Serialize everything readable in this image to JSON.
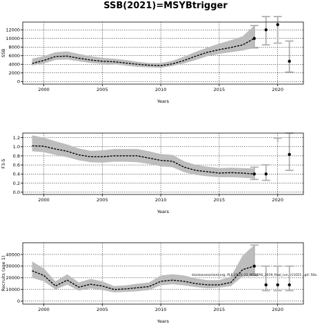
{
  "figure": {
    "title": "SSB(2021)=MSYBtrigger"
  },
  "chart_data": [
    {
      "type": "line",
      "xlabel": "Years",
      "ylabel": "SSB",
      "xlim": [
        1998.2,
        2022.2
      ],
      "ylim": [
        -600,
        13800
      ],
      "xticks": [
        2000,
        2005,
        2010,
        2015,
        2020
      ],
      "yticks": [
        0,
        2000,
        4000,
        6000,
        8000,
        10000,
        12000
      ],
      "grid": true,
      "x": [
        1999,
        2000,
        2001,
        2002,
        2003,
        2004,
        2005,
        2006,
        2007,
        2008,
        2009,
        2010,
        2011,
        2012,
        2013,
        2014,
        2015,
        2016,
        2017,
        2018
      ],
      "estimate": [
        4200,
        4900,
        5800,
        5900,
        5400,
        5000,
        4700,
        4600,
        4300,
        4000,
        3800,
        3700,
        4100,
        4900,
        5900,
        6800,
        7400,
        7900,
        8500,
        10000
      ],
      "lower": [
        3700,
        4200,
        5000,
        5100,
        4700,
        4300,
        4100,
        4000,
        3700,
        3400,
        3300,
        3200,
        3600,
        4200,
        5000,
        5900,
        6400,
        6800,
        7200,
        7800
      ],
      "upper": [
        5300,
        5900,
        6800,
        7000,
        6400,
        5900,
        5500,
        5300,
        5000,
        4600,
        4300,
        4300,
        4800,
        5800,
        6900,
        7900,
        8800,
        9600,
        10500,
        13000
      ],
      "projections": [
        {
          "year": 2019,
          "value": 12000,
          "lower": 8500,
          "upper": 15500
        },
        {
          "year": 2020,
          "value": 13200,
          "lower": 8900,
          "upper": 17500
        },
        {
          "year": 2021,
          "value": 4700,
          "lower": 2200,
          "upper": 9400
        }
      ],
      "error_bar_2018": {
        "lower": 7800,
        "upper": 13000
      }
    },
    {
      "type": "line",
      "xlabel": "Years",
      "ylabel": "F3-5",
      "xlim": [
        1998.2,
        2022.2
      ],
      "ylim": [
        -0.05,
        1.3
      ],
      "xticks": [
        2000,
        2005,
        2010,
        2015,
        2020
      ],
      "yticks": [
        0.0,
        0.2,
        0.4,
        0.6,
        0.8,
        1.0,
        1.2
      ],
      "grid": true,
      "x": [
        1999,
        2000,
        2001,
        2002,
        2003,
        2004,
        2005,
        2006,
        2007,
        2008,
        2009,
        2010,
        2011,
        2012,
        2013,
        2014,
        2015,
        2016,
        2017,
        2018
      ],
      "estimate": [
        1.02,
        1.01,
        0.95,
        0.9,
        0.82,
        0.78,
        0.78,
        0.8,
        0.8,
        0.8,
        0.75,
        0.7,
        0.68,
        0.55,
        0.48,
        0.45,
        0.42,
        0.43,
        0.42,
        0.4
      ],
      "lower": [
        0.9,
        0.88,
        0.82,
        0.77,
        0.7,
        0.66,
        0.65,
        0.67,
        0.67,
        0.66,
        0.62,
        0.57,
        0.55,
        0.44,
        0.38,
        0.35,
        0.33,
        0.33,
        0.32,
        0.3
      ],
      "upper": [
        1.25,
        1.2,
        1.12,
        1.05,
        0.96,
        0.91,
        0.92,
        0.95,
        0.95,
        0.95,
        0.9,
        0.84,
        0.82,
        0.68,
        0.6,
        0.56,
        0.53,
        0.54,
        0.53,
        0.52
      ],
      "projections": [
        {
          "year": 2019,
          "value": 0.4,
          "lower": 0.26,
          "upper": 0.6
        },
        {
          "year": 2020,
          "value": null,
          "lower": null,
          "upper": 1.19
        },
        {
          "year": 2021,
          "value": 0.83,
          "lower": 0.48,
          "upper": 1.3
        }
      ],
      "error_bar_2018": {
        "lower": 0.28,
        "upper": 0.55
      }
    },
    {
      "type": "line",
      "xlabel": "Years",
      "ylabel": "Recruits (age 1)",
      "xlim": [
        1998.2,
        2022.2
      ],
      "ylim": [
        -2500,
        50000
      ],
      "xticks": [
        2000,
        2005,
        2010,
        2015,
        2020
      ],
      "yticks": [
        0,
        10000,
        20000,
        30000,
        40000
      ],
      "ytick_labels": [
        "0",
        "10000",
        "20000",
        "30000",
        "40000"
      ],
      "grid": true,
      "x": [
        1999,
        2000,
        2001,
        2002,
        2003,
        2004,
        2005,
        2006,
        2007,
        2008,
        2009,
        2010,
        2011,
        2012,
        2013,
        2014,
        2015,
        2016,
        2017,
        2018
      ],
      "estimate": [
        26000,
        22000,
        13000,
        18000,
        12000,
        14500,
        13000,
        10000,
        10500,
        11500,
        12500,
        17000,
        18000,
        17000,
        15000,
        14000,
        14000,
        16000,
        27000,
        30000
      ],
      "lower": [
        20000,
        17000,
        10000,
        14000,
        9000,
        11000,
        9500,
        7500,
        8000,
        8500,
        9500,
        13500,
        14500,
        13500,
        12000,
        11000,
        11500,
        13000,
        21000,
        22000
      ],
      "upper": [
        34000,
        28000,
        17000,
        23000,
        16000,
        19000,
        17000,
        13000,
        13500,
        15000,
        16000,
        22000,
        23000,
        22000,
        19500,
        18000,
        18000,
        21000,
        39000,
        48000
      ],
      "projections": [
        {
          "year": 2019,
          "value": 14000,
          "lower": 9000,
          "upper": 30000
        },
        {
          "year": 2020,
          "value": 14000,
          "lower": 9000,
          "upper": 30000
        },
        {
          "year": 2021,
          "value": 14000,
          "lower": 9000,
          "upper": 30000
        }
      ],
      "error_bar_2018": {
        "lower": 22000,
        "upper": 48000
      },
      "annotation": "stockassessment.org, PLE.27.21-23_WGBFAS_2019_final_run, r11015 , git: 50a"
    }
  ],
  "colors": {
    "band": "#bdbdbd",
    "line": "#000000",
    "errorbar": "#b0b0b0"
  }
}
